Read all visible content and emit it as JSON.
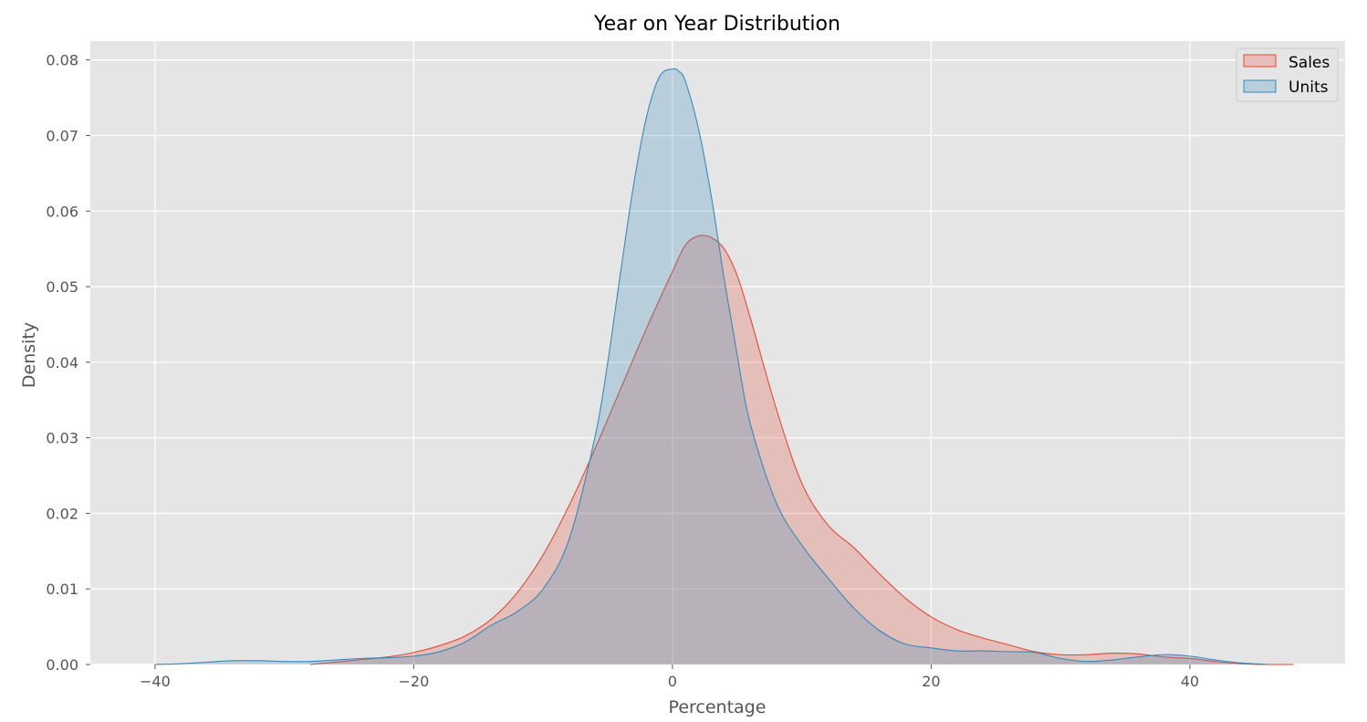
{
  "chart_data": {
    "type": "area",
    "title": "Year on Year Distribution",
    "xlabel": "Percentage",
    "ylabel": "Density",
    "xlim": [
      -45,
      52
    ],
    "ylim": [
      0,
      0.0825
    ],
    "xticks": [
      -40,
      -20,
      0,
      20,
      40
    ],
    "xtick_labels": [
      "−40",
      "−20",
      "0",
      "20",
      "40"
    ],
    "yticks": [
      0.0,
      0.01,
      0.02,
      0.03,
      0.04,
      0.05,
      0.06,
      0.07,
      0.08
    ],
    "ytick_labels": [
      "0.00",
      "0.01",
      "0.02",
      "0.03",
      "0.04",
      "0.05",
      "0.06",
      "0.07",
      "0.08"
    ],
    "grid": true,
    "style": "ggplot",
    "legend_position": "top-right",
    "series": [
      {
        "name": "Sales",
        "color": "#E24A33",
        "x": [
          -28,
          -25,
          -22,
          -20,
          -18,
          -16,
          -14,
          -12,
          -10,
          -8,
          -6,
          -4,
          -2,
          0,
          1,
          2,
          3,
          4,
          5,
          6,
          8,
          10,
          12,
          14,
          16,
          18,
          20,
          22,
          24,
          26,
          28,
          30,
          32,
          34,
          36,
          38,
          40,
          42,
          44,
          46,
          48
        ],
        "y": [
          0.0,
          0.0005,
          0.001,
          0.0016,
          0.0025,
          0.0038,
          0.006,
          0.0095,
          0.0145,
          0.021,
          0.0285,
          0.0365,
          0.0445,
          0.052,
          0.0555,
          0.0567,
          0.0565,
          0.055,
          0.0515,
          0.046,
          0.034,
          0.024,
          0.0185,
          0.0155,
          0.012,
          0.0088,
          0.0063,
          0.0046,
          0.0035,
          0.0026,
          0.0017,
          0.0013,
          0.0013,
          0.0015,
          0.0014,
          0.001,
          0.0008,
          0.0004,
          0.0001,
          0.0,
          0.0
        ]
      },
      {
        "name": "Units",
        "color": "#348ABD",
        "x": [
          -40,
          -38,
          -36,
          -34,
          -32,
          -30,
          -28,
          -26,
          -24,
          -22,
          -20,
          -18,
          -16,
          -14,
          -12,
          -10,
          -8,
          -6,
          -5,
          -4,
          -3,
          -2,
          -1,
          0,
          0.5,
          1,
          2,
          3,
          4,
          5,
          6,
          8,
          10,
          12,
          14,
          16,
          18,
          20,
          22,
          24,
          26,
          28,
          30,
          32,
          34,
          36,
          38,
          40,
          42,
          44,
          46
        ],
        "y": [
          0.0,
          0.0001,
          0.0003,
          0.0005,
          0.0005,
          0.0004,
          0.0004,
          0.0006,
          0.0008,
          0.0009,
          0.0011,
          0.0017,
          0.003,
          0.0052,
          0.007,
          0.01,
          0.0165,
          0.03,
          0.04,
          0.052,
          0.0635,
          0.0725,
          0.0778,
          0.0788,
          0.0785,
          0.0772,
          0.071,
          0.062,
          0.051,
          0.041,
          0.032,
          0.0215,
          0.0158,
          0.0115,
          0.0075,
          0.0045,
          0.0027,
          0.0022,
          0.0018,
          0.0018,
          0.0017,
          0.0016,
          0.0008,
          0.0004,
          0.0006,
          0.001,
          0.0013,
          0.0011,
          0.0006,
          0.0002,
          0.0
        ]
      }
    ]
  }
}
